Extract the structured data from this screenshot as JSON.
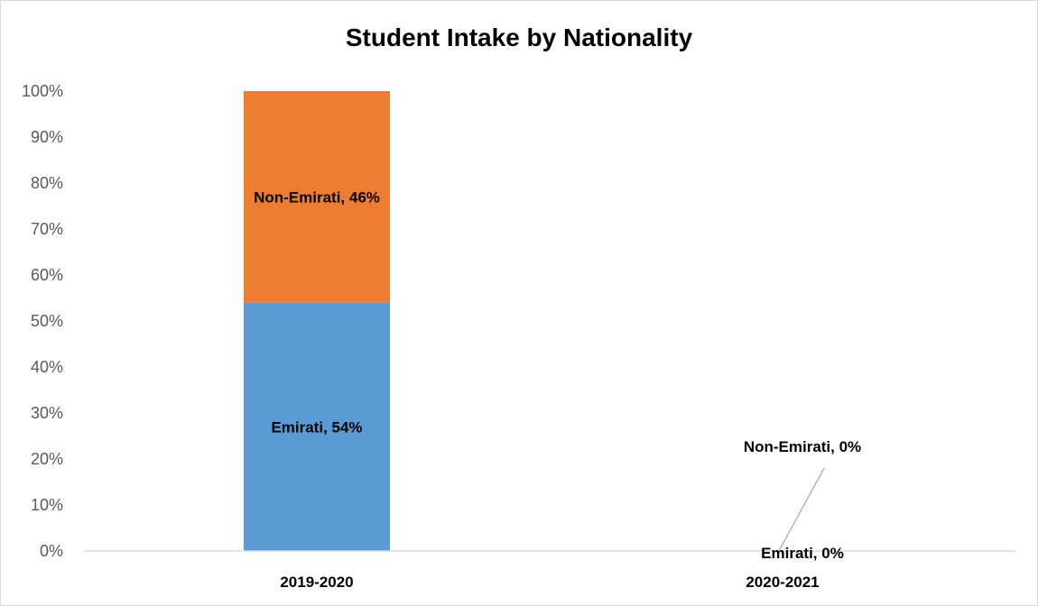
{
  "chart_data": {
    "type": "bar",
    "stacked": true,
    "percent": true,
    "title": "Student Intake by Nationality",
    "xlabel": "",
    "ylabel": "",
    "categories": [
      "2019-2020",
      "2020-2021"
    ],
    "series": [
      {
        "name": "Emirati",
        "values": [
          54,
          0
        ],
        "color": "#5b9bd5"
      },
      {
        "name": "Non-Emirati",
        "values": [
          46,
          0
        ],
        "color": "#ed7d31"
      }
    ],
    "data_labels": [
      [
        "Emirati, 54%",
        "Emirati, 0%"
      ],
      [
        "Non-Emirati, 46%",
        "Non-Emirati, 0%"
      ]
    ],
    "ylim": [
      0,
      100
    ],
    "yticks": [
      0,
      10,
      20,
      30,
      40,
      50,
      60,
      70,
      80,
      90,
      100
    ],
    "ytick_labels": [
      "0%",
      "10%",
      "20%",
      "30%",
      "40%",
      "50%",
      "60%",
      "70%",
      "80%",
      "90%",
      "100%"
    ],
    "grid": false,
    "legend": "none",
    "axis_color": "#d9d9d9",
    "leader_line_color": "#a6a6a6"
  }
}
